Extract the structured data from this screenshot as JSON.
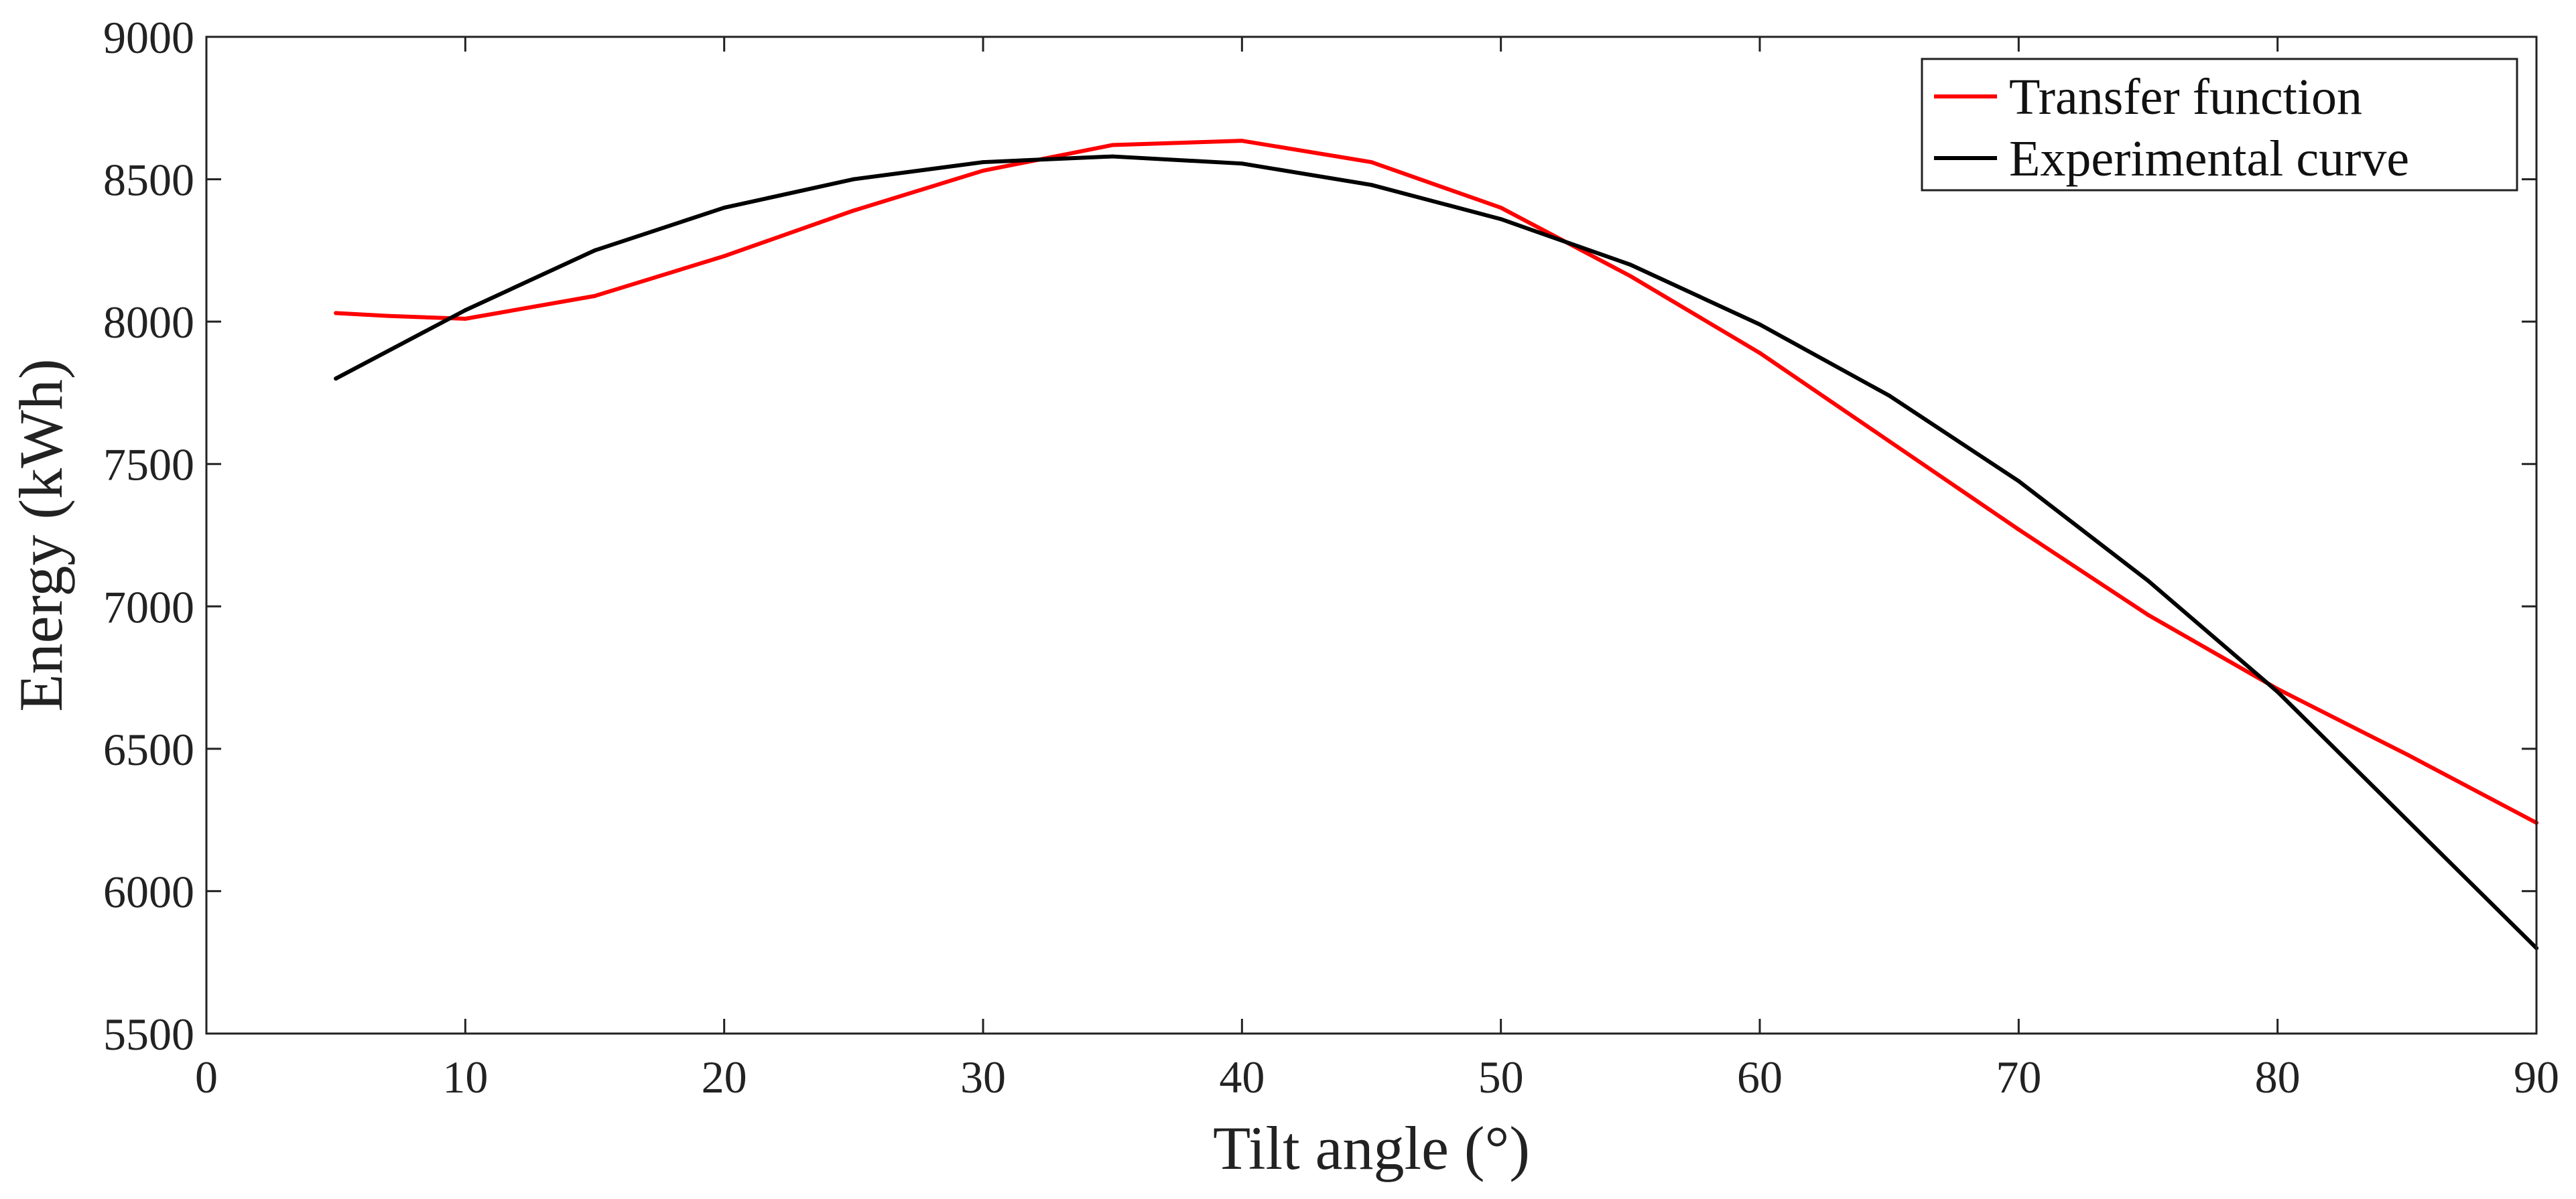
{
  "chart_data": {
    "type": "line",
    "title": "",
    "xlabel": "Tilt angle (°)",
    "ylabel": "Energy (kWh)",
    "xlim": [
      0,
      90
    ],
    "ylim": [
      5500,
      9000
    ],
    "xticks": [
      0,
      10,
      20,
      30,
      40,
      50,
      60,
      70,
      80,
      90
    ],
    "yticks": [
      5500,
      6000,
      6500,
      7000,
      7500,
      8000,
      8500,
      9000
    ],
    "grid": false,
    "legend_position": "top-right",
    "series": [
      {
        "name": "Transfer function",
        "color": "#ff0000",
        "x": [
          5,
          7,
          10,
          15,
          20,
          25,
          30,
          35,
          40,
          45,
          50,
          55,
          60,
          65,
          70,
          75,
          80,
          85,
          90
        ],
        "y": [
          8030,
          8020,
          8010,
          8090,
          8230,
          8390,
          8530,
          8620,
          8635,
          8560,
          8400,
          8160,
          7890,
          7580,
          7270,
          6970,
          6710,
          6480,
          6240
        ]
      },
      {
        "name": "Experimental curve",
        "color": "#000000",
        "x": [
          5,
          10,
          15,
          20,
          25,
          30,
          35,
          40,
          45,
          50,
          55,
          60,
          65,
          70,
          75,
          80,
          85,
          90
        ],
        "y": [
          7800,
          8040,
          8250,
          8400,
          8500,
          8560,
          8580,
          8555,
          8480,
          8360,
          8200,
          7990,
          7740,
          7440,
          7090,
          6700,
          6250,
          5800
        ]
      }
    ]
  }
}
